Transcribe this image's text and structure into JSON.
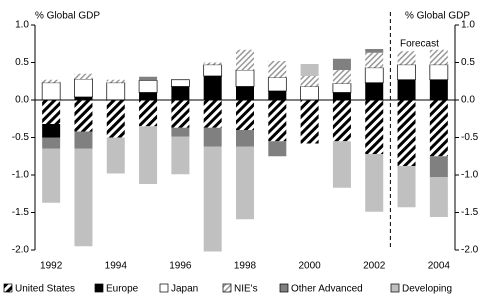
{
  "chart_data": {
    "type": "stacked-bar",
    "y_label": "% Global GDP",
    "y2_label": "% Global GDP",
    "annotation": "Forecast",
    "categories": [
      "1992",
      null,
      "1994",
      null,
      "1996",
      null,
      "1998",
      null,
      "2000",
      null,
      "2002",
      null,
      "2004"
    ],
    "series": [
      {
        "name": "United States",
        "color": "#000000",
        "pattern": "diagonal",
        "values": [
          -0.32,
          -0.42,
          -0.5,
          -0.35,
          -0.37,
          -0.37,
          -0.4,
          -0.55,
          -0.58,
          -0.55,
          -0.72,
          -0.88,
          -0.75
        ]
      },
      {
        "name": "Europe",
        "color": "#000000",
        "values": [
          -0.18,
          0.04,
          0.0,
          0.1,
          0.18,
          0.32,
          0.18,
          0.12,
          0.0,
          0.1,
          0.23,
          0.27,
          0.27
        ]
      },
      {
        "name": "Japan",
        "color": "#ffffff",
        "values": [
          0.23,
          0.24,
          0.23,
          0.16,
          0.09,
          0.15,
          0.22,
          0.18,
          0.18,
          0.12,
          0.2,
          0.2,
          0.2
        ]
      },
      {
        "name": "NIE's",
        "color": "#999999",
        "pattern": "diagonal",
        "values": [
          0.04,
          0.07,
          0.04,
          0.0,
          0.0,
          0.03,
          0.27,
          0.22,
          0.14,
          0.18,
          0.2,
          0.18,
          0.2
        ]
      },
      {
        "name": "Other Advanced",
        "color": "#808080",
        "values": [
          -0.15,
          -0.23,
          0.0,
          0.05,
          -0.12,
          -0.25,
          -0.22,
          -0.2,
          0.0,
          0.15,
          0.05,
          0.0,
          -0.28
        ]
      },
      {
        "name": "Developing",
        "color": "#c0c0c0",
        "values": [
          -0.72,
          -1.3,
          -0.48,
          -0.77,
          -0.5,
          -1.4,
          -0.97,
          0.0,
          0.16,
          -0.62,
          -0.77,
          -0.55,
          -0.53
        ]
      }
    ],
    "ylim": [
      -2.0,
      1.0
    ],
    "yticks": [
      {
        "value": 1.0,
        "label": "1.0"
      },
      {
        "value": 0.5,
        "label": "0.5"
      },
      {
        "value": 0.0,
        "label": "0.0"
      },
      {
        "value": -0.5,
        "label": "-0.5"
      },
      {
        "value": -1.0,
        "label": "-1.0"
      },
      {
        "value": -1.5,
        "label": "-1.5"
      },
      {
        "value": -2.0,
        "label": "-2.0"
      }
    ],
    "y2lim": [
      -2.0,
      1.0
    ],
    "y2ticks": [
      {
        "value": 1.0,
        "label": "1.0"
      },
      {
        "value": 0.5,
        "label": "0.5"
      },
      {
        "value": 0.0,
        "label": "0.0"
      },
      {
        "value": -0.5,
        "label": "-0.5"
      },
      {
        "value": -1.0,
        "label": "-1.0"
      },
      {
        "value": -1.5,
        "label": "-1.5"
      },
      {
        "value": -2.0,
        "label": "-2.0"
      }
    ],
    "legend": "bottom"
  }
}
